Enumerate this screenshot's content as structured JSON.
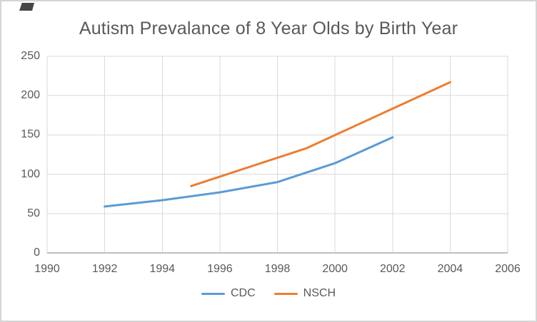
{
  "chart_data": {
    "type": "line",
    "title": "Autism Prevalance of 8 Year Olds by Birth Year",
    "xlabel": "",
    "ylabel": "",
    "xlim": [
      1990,
      2006
    ],
    "ylim": [
      0,
      250
    ],
    "x_ticks": [
      1990,
      1992,
      1994,
      1996,
      1998,
      2000,
      2002,
      2004,
      2006
    ],
    "y_ticks": [
      0,
      50,
      100,
      150,
      200,
      250
    ],
    "grid": true,
    "legend_position": "bottom-center",
    "series": [
      {
        "name": "CDC",
        "color": "#5B9BD5",
        "points": [
          [
            1992,
            59
          ],
          [
            1994,
            67
          ],
          [
            1996,
            77
          ],
          [
            1998,
            90
          ],
          [
            2000,
            114
          ],
          [
            2002,
            147
          ]
        ]
      },
      {
        "name": "NSCH",
        "color": "#ED7D31",
        "points": [
          [
            1995,
            85
          ],
          [
            1999,
            133
          ],
          [
            2004,
            217
          ]
        ]
      }
    ]
  },
  "colors": {
    "title_text": "#595959",
    "tick_text": "#595959",
    "gridline": "#D9D9D9",
    "axis_line": "#BFBFBF",
    "background": "#FFFFFF",
    "frame_border": "#D5D5D5"
  }
}
